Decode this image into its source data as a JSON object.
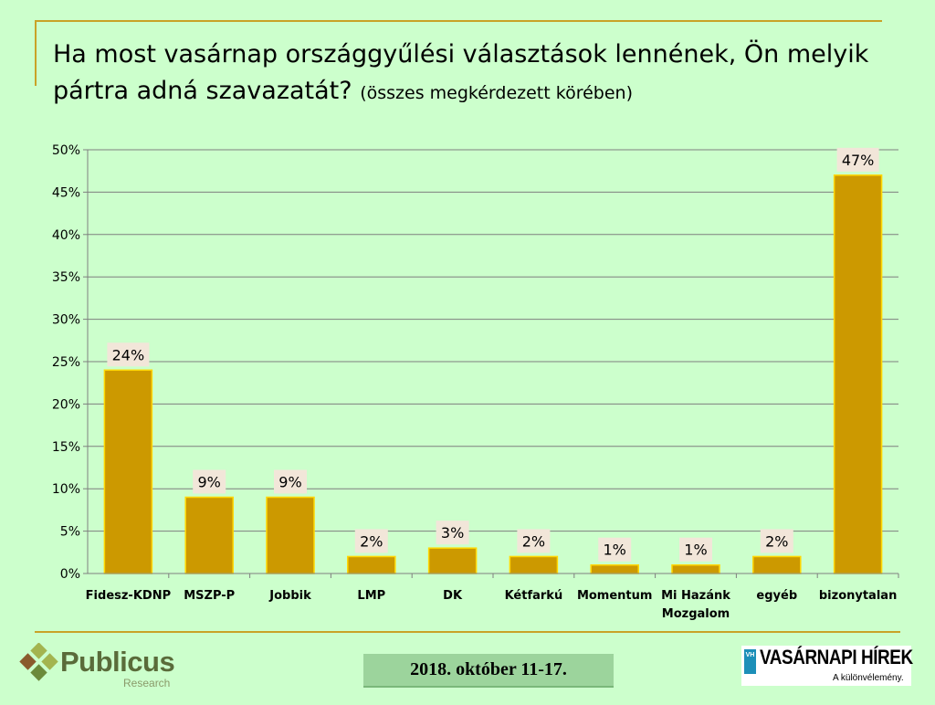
{
  "title": {
    "main": "Ha most vasárnap országgyűlési választások lennének, Ön melyik pártra adná szavazatát?",
    "sub": "(összes megkérdezett körében)"
  },
  "chart_data": {
    "type": "bar",
    "categories": [
      "Fidesz-KDNP",
      "MSZP-P",
      "Jobbik",
      "LMP",
      "DK",
      "Kétfarkú",
      "Momentum",
      "Mi Hazánk Mozgalom",
      "egyéb",
      "bizonytalan"
    ],
    "category_lines": [
      [
        "Fidesz-KDNP"
      ],
      [
        "MSZP-P"
      ],
      [
        "Jobbik"
      ],
      [
        "LMP"
      ],
      [
        "DK"
      ],
      [
        "Kétfarkú"
      ],
      [
        "Momentum"
      ],
      [
        "Mi Hazánk",
        "Mozgalom"
      ],
      [
        "egyéb"
      ],
      [
        "bizonytalan"
      ]
    ],
    "values": [
      24,
      9,
      9,
      2,
      3,
      2,
      1,
      1,
      2,
      47
    ],
    "data_labels": [
      "24%",
      "9%",
      "9%",
      "2%",
      "3%",
      "2%",
      "1%",
      "1%",
      "2%",
      "47%"
    ],
    "ylim": [
      0,
      50
    ],
    "yticks": [
      0,
      5,
      10,
      15,
      20,
      25,
      30,
      35,
      40,
      45,
      50
    ],
    "ytick_labels": [
      "0%",
      "5%",
      "10%",
      "15%",
      "20%",
      "25%",
      "30%",
      "35%",
      "40%",
      "45%",
      "50%"
    ],
    "grid": true,
    "bar_color": "#cc9900",
    "bar_border_color": "#ffd700",
    "label_bg_color": "#f2e6d9"
  },
  "footer": {
    "logo_name": "Publicus",
    "logo_sub": "Research",
    "date": "2018. október 11-17.",
    "partner_badge": "VH",
    "partner_name": "VASÁRNAPI HÍREK",
    "partner_tagline": "A különvélemény."
  }
}
